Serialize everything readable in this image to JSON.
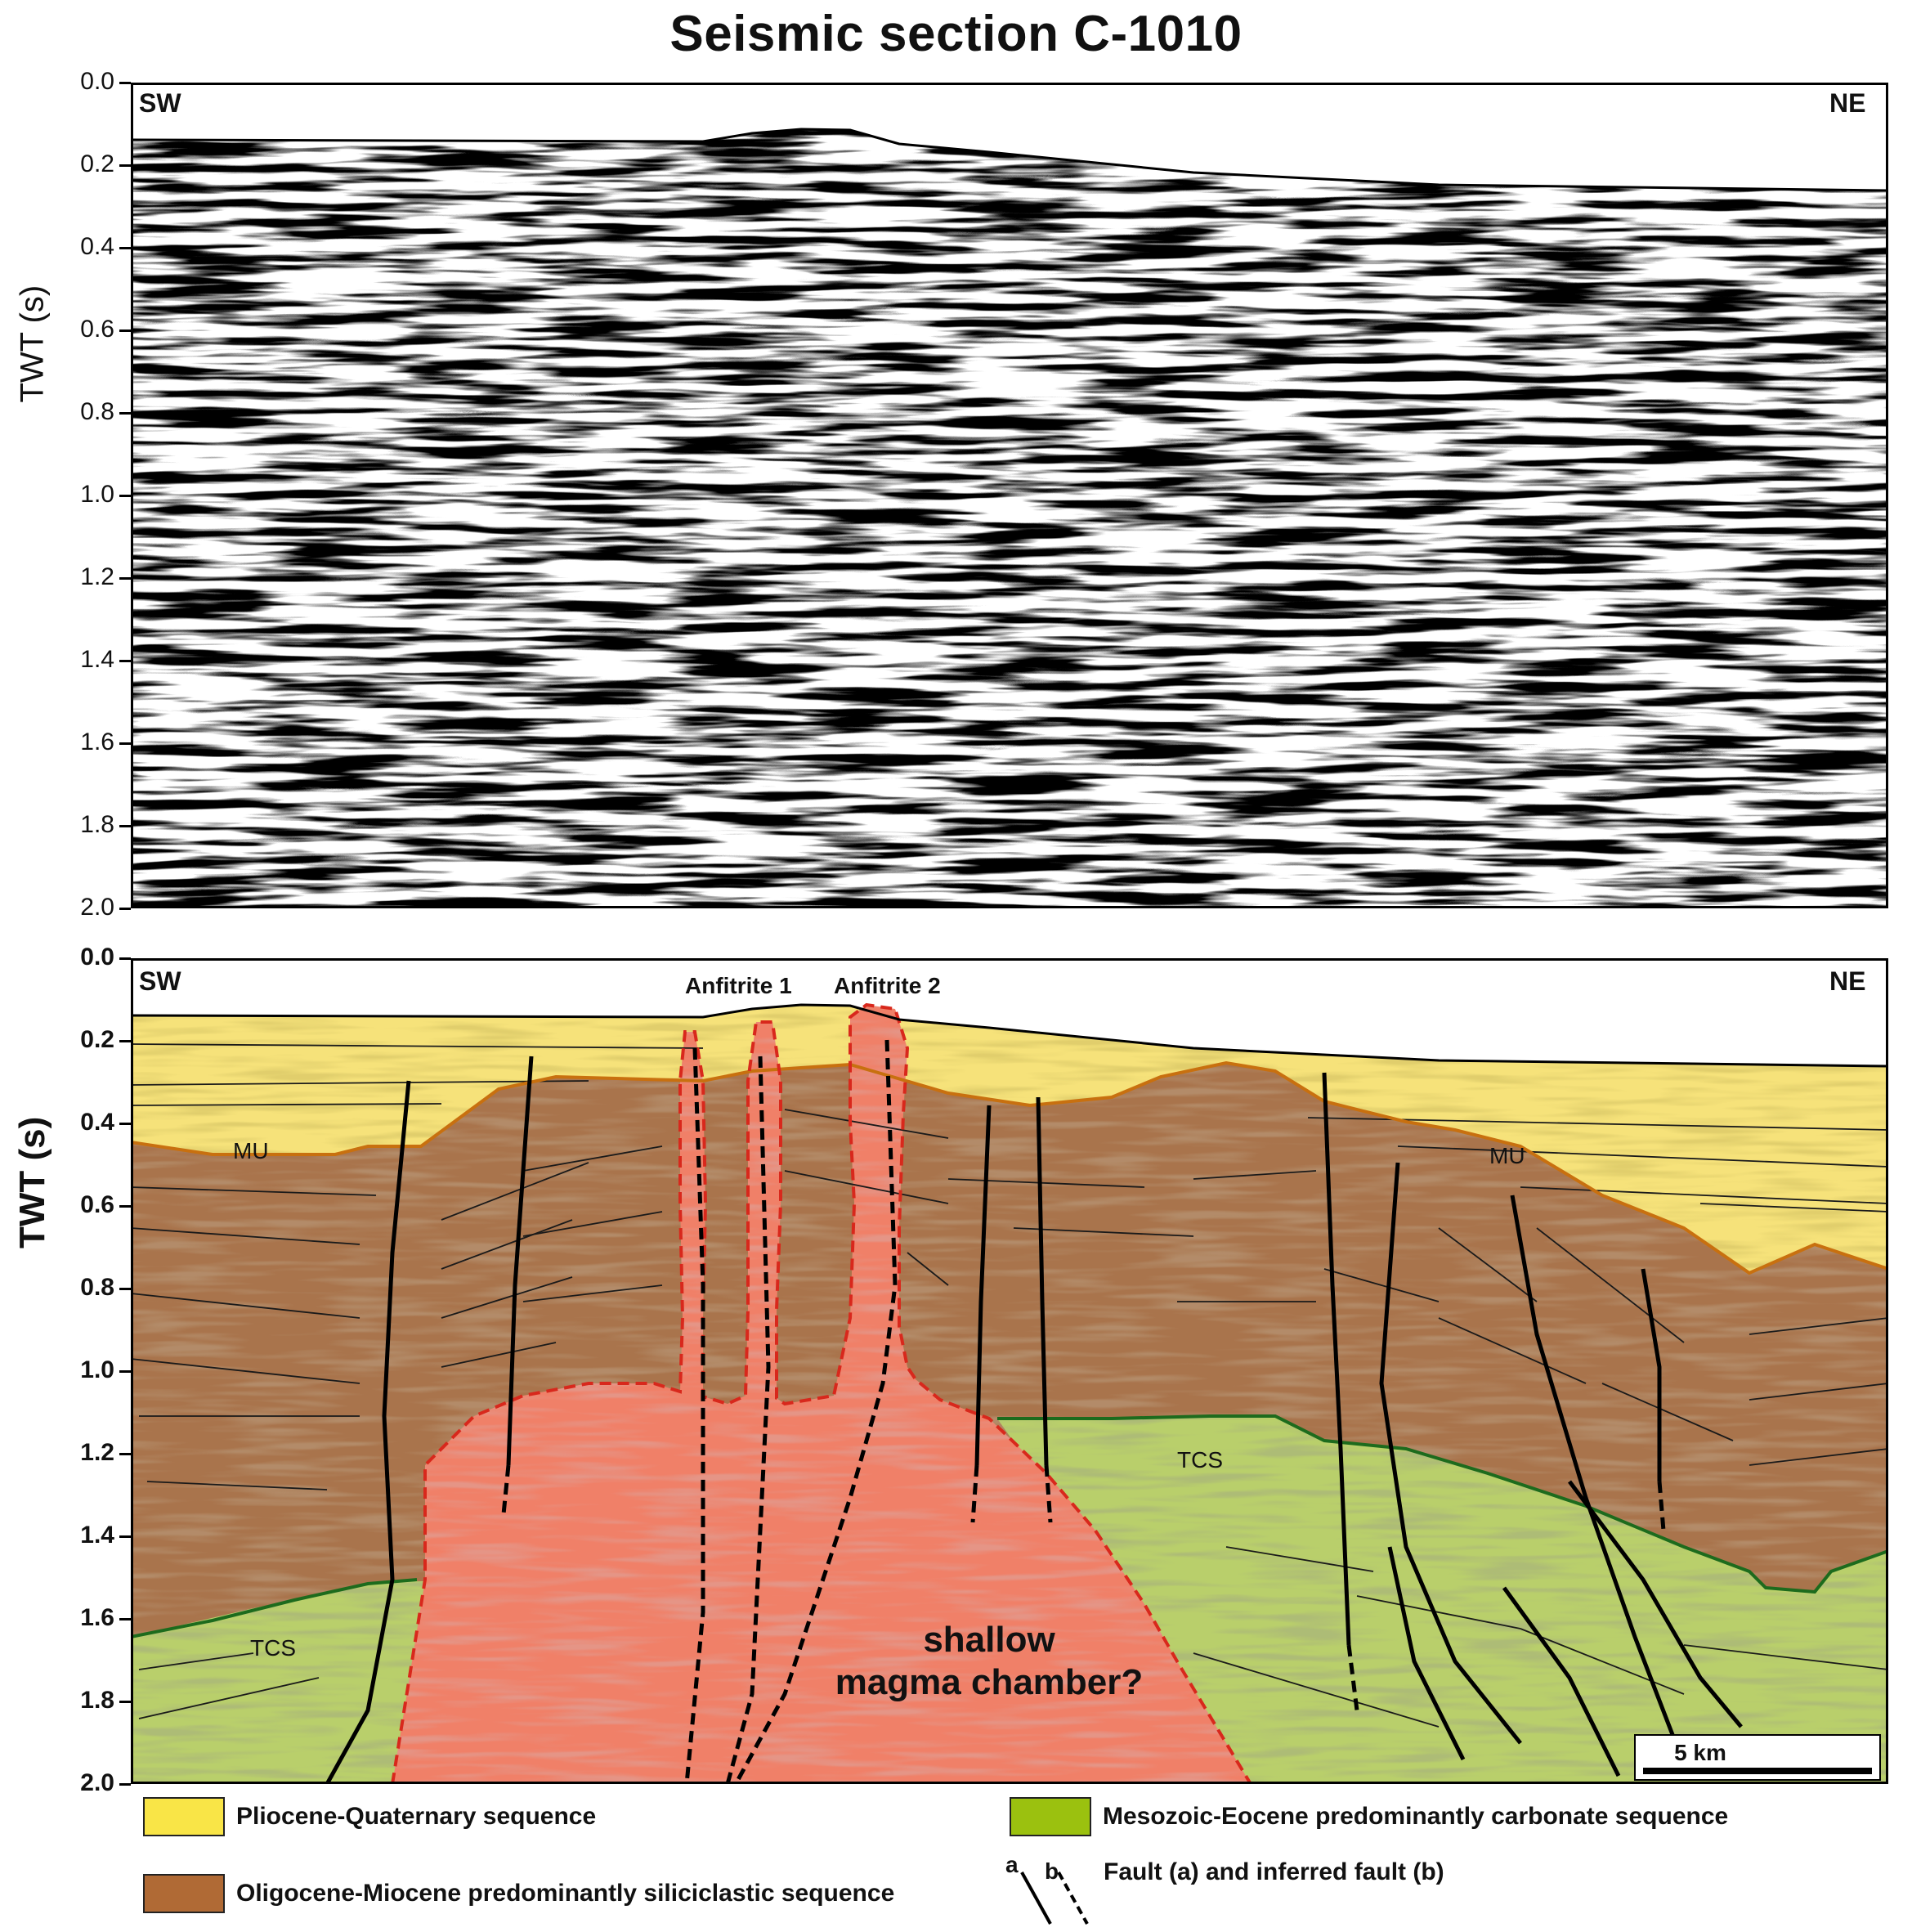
{
  "title": "Seismic section C-1010",
  "axes": {
    "ylabel": "TWT (s)",
    "y_ticks": [
      "0.0",
      "0.2",
      "0.4",
      "0.6",
      "0.8",
      "1.0",
      "1.2",
      "1.4",
      "1.6",
      "1.8",
      "2.0"
    ]
  },
  "panels": {
    "upper": {
      "left_label": "SW",
      "right_label": "NE"
    },
    "lower": {
      "left_label": "SW",
      "right_label": "NE",
      "annotations": {
        "anfitrite1": "Anfitrite 1",
        "anfitrite2": "Anfitrite 2",
        "mu_left": "MU",
        "mu_right": "MU",
        "tcs_left": "TCS",
        "tcs_right": "TCS",
        "magma_line1": "shallow",
        "magma_line2": "magma chamber?"
      },
      "scale_bar": "5 km"
    }
  },
  "legend": {
    "items": [
      {
        "label": "Pliocene-Quaternary sequence",
        "color": "#f9e547"
      },
      {
        "label": "Oligocene-Miocene predominantly siliciclastic sequence",
        "color": "#b06a35"
      },
      {
        "label": "Mesozoic-Eocene predominantly carbonate sequence",
        "color": "#9bc10f"
      }
    ],
    "fault": {
      "label": "Fault (a) and inferred fault (b)",
      "a": "a",
      "b": "b"
    }
  },
  "colors": {
    "pliocene": "#f6e27a",
    "oligocene": "#a9744c",
    "mesozoic": "#b9cf6b",
    "magma": "#f08068",
    "mu_line": "#c8700f",
    "tcs_line": "#1d6b1d",
    "magma_outline": "#d8281c"
  }
}
